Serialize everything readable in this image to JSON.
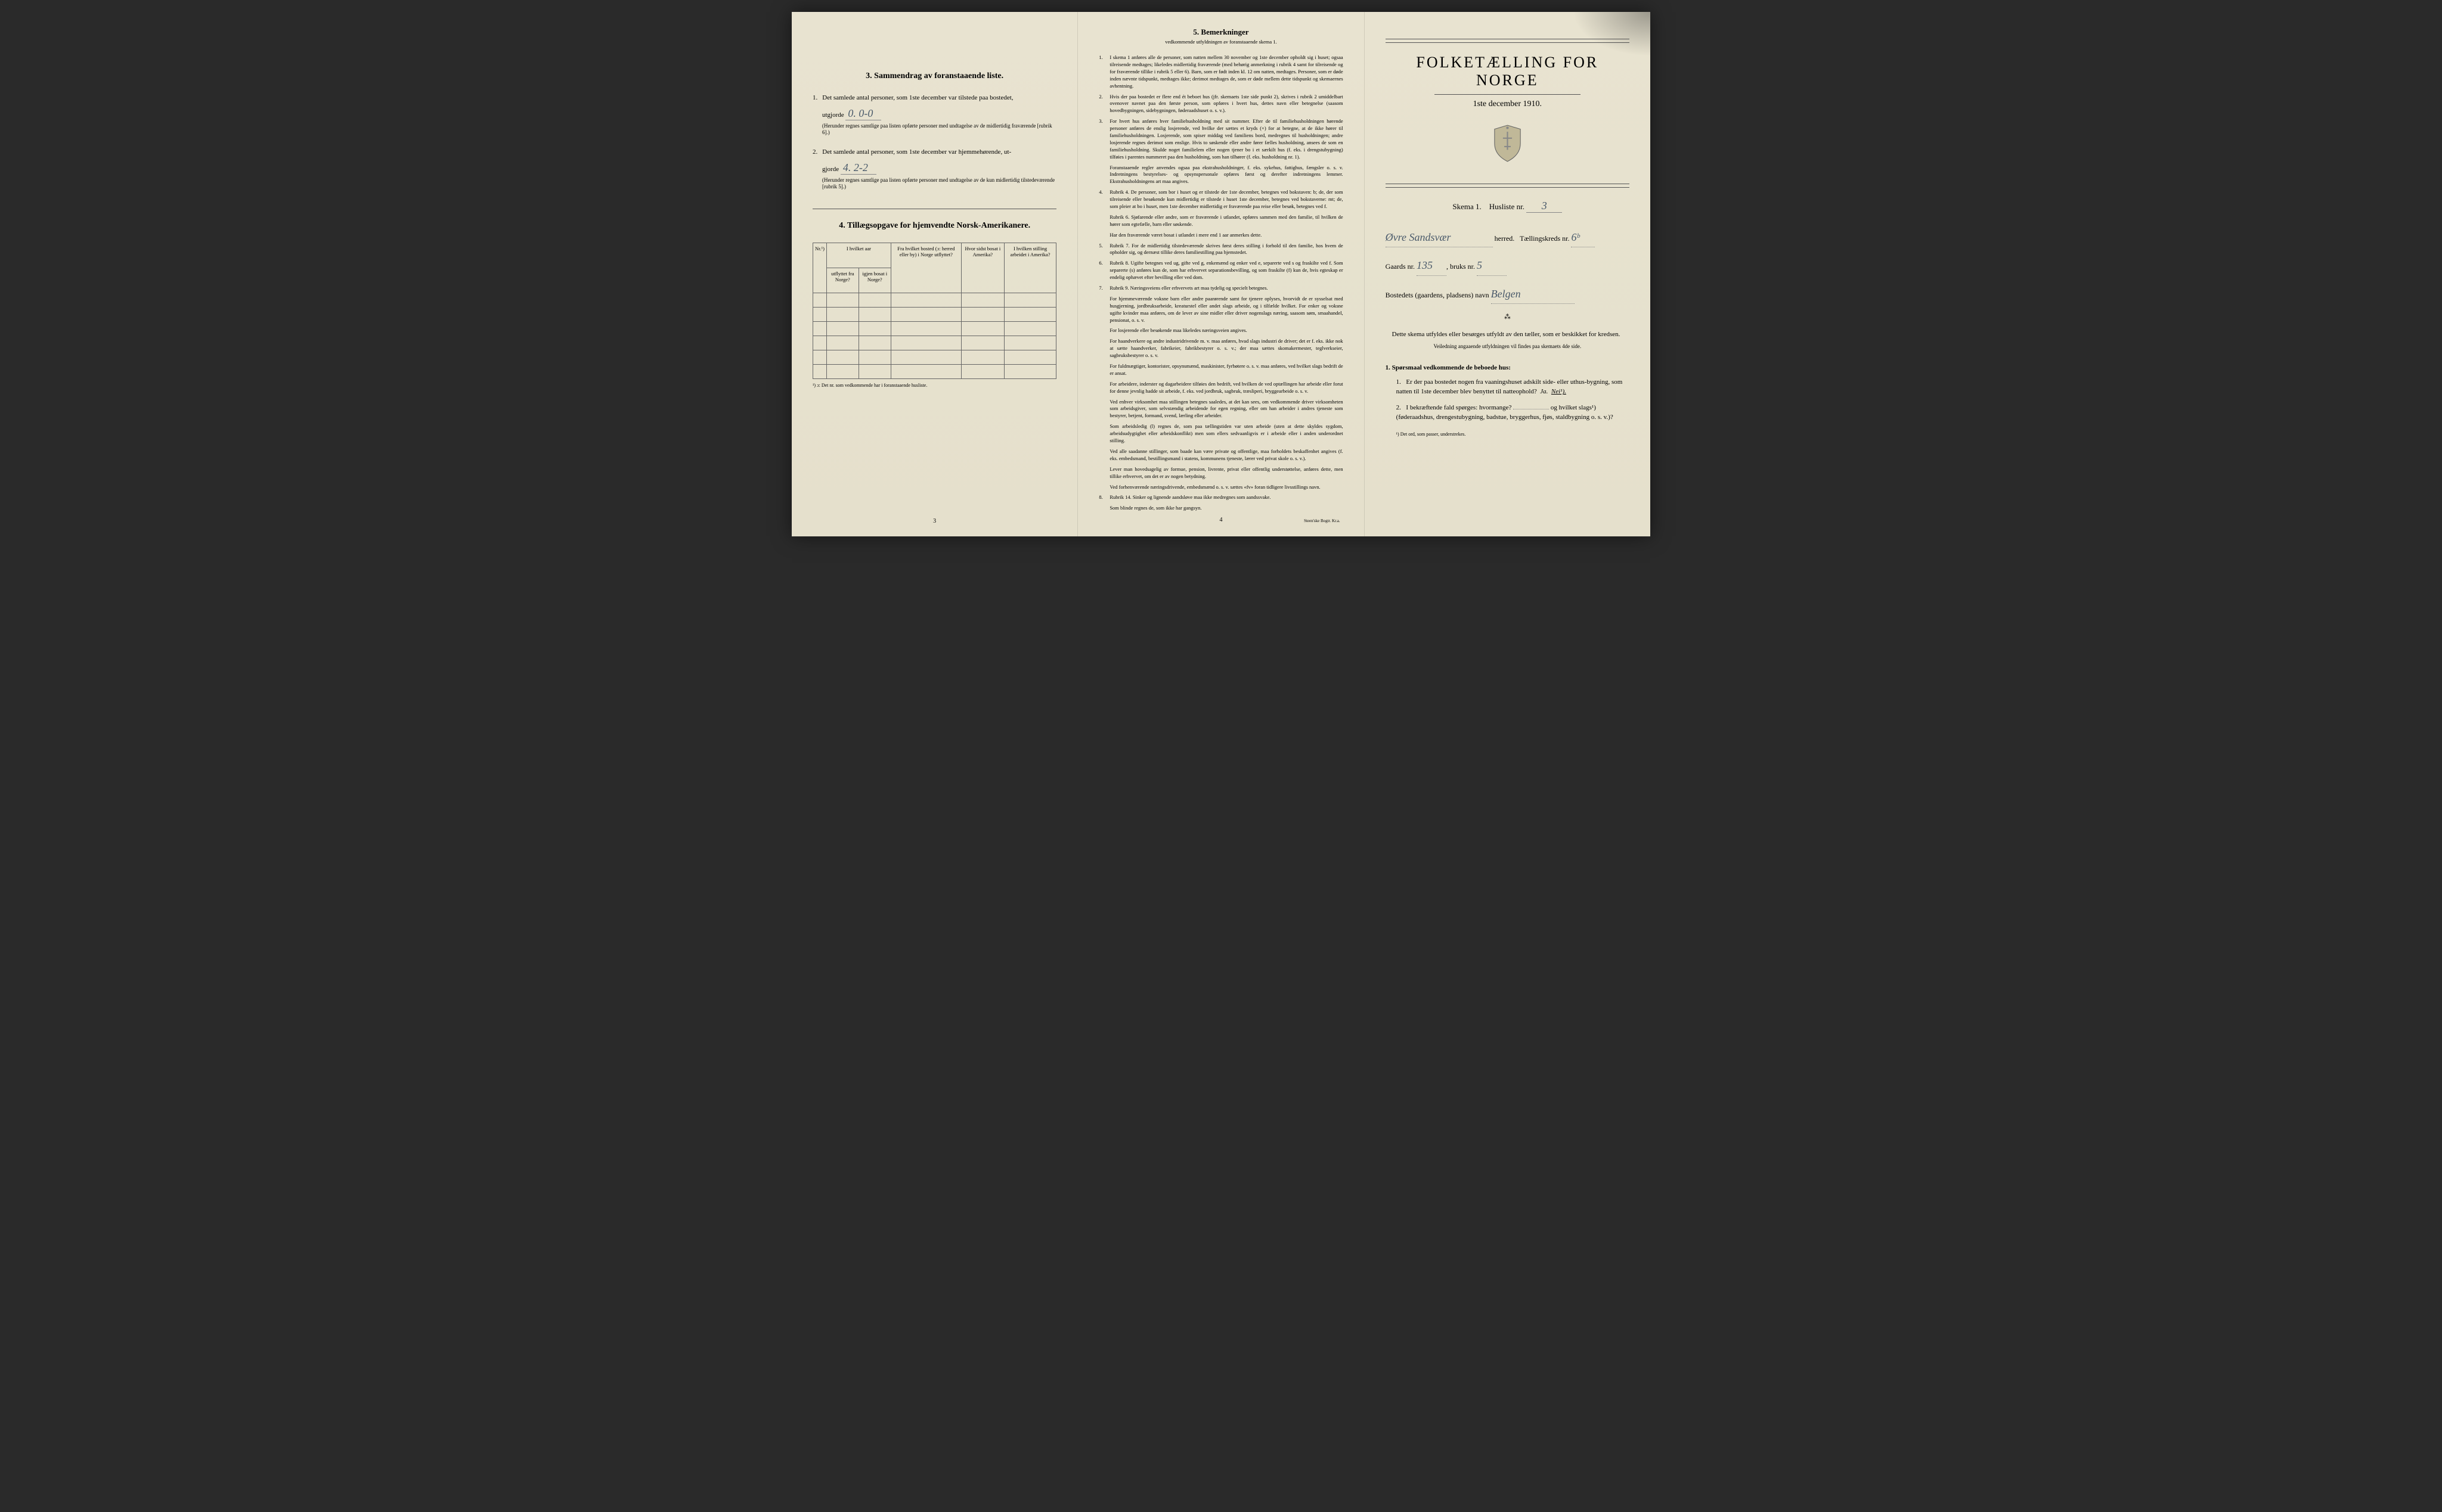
{
  "colors": {
    "paper": "#e8e3d0",
    "ink": "#1a1a1a",
    "handwriting": "#4a5a6a",
    "border": "#666666"
  },
  "left": {
    "section3": {
      "num": "3.",
      "title": "Sammendrag av foranstaaende liste.",
      "q1_num": "1.",
      "q1_text": "Det samlede antal personer, som 1ste december var tilstede paa bostedet,",
      "q1_prefix": "utgjorde",
      "q1_value": "0. 0-0",
      "q1_note": "(Herunder regnes samtlige paa listen opførte personer med undtagelse av de midlertidig fraværende [rubrik 6].)",
      "q2_num": "2.",
      "q2_text": "Det samlede antal personer, som 1ste december var hjemmehørende, ut-",
      "q2_prefix": "gjorde",
      "q2_value": "4. 2-2",
      "q2_note": "(Herunder regnes samtlige paa listen opførte personer med undtagelse av de kun midlertidig tilstedeværende [rubrik 5].)"
    },
    "section4": {
      "num": "4.",
      "title": "Tillægsopgave for hjemvendte Norsk-Amerikanere.",
      "headers": {
        "col1": "Nr.¹)",
        "col2a": "I hvilket aar",
        "col2b": "utflyttet fra Norge?",
        "col2c": "igjen bosat i Norge?",
        "col3": "Fra hvilket bosted (ɔ: herred eller by) i Norge utflyttet?",
        "col4": "Hvor sidst bosat i Amerika?",
        "col5": "I hvilken stilling arbeidet i Amerika?"
      },
      "footnote": "¹) ɔ: Det nr. som vedkommende har i foranstaaende husliste."
    },
    "page_num": "3"
  },
  "center": {
    "section5": {
      "num": "5.",
      "title": "Bemerkninger",
      "subtitle": "vedkommende utfyldningen av foranstaaende skema 1.",
      "items": [
        {
          "num": "1.",
          "text": "I skema 1 anføres alle de personer, som natten mellem 30 november og 1ste december opholdt sig i huset; ogsaa tilreisende medtages; likeledes midlertidig fraværende (med behørig anmerkning i rubrik 4 samt for tilreisende og for fraværende tillike i rubrik 5 eller 6). Barn, som er født inden kl. 12 om natten, medtages. Personer, som er døde inden nævnte tidspunkt, medtages ikke; derimot medtages de, som er døde mellem dette tidspunkt og skemaernes avhentning."
        },
        {
          "num": "2.",
          "text": "Hvis der paa bostedet er flere end ét beboet hus (jfr. skemaets 1ste side punkt 2), skrives i rubrik 2 umiddelbart ovenover navnet paa den første person, som opføres i hvert hus, dettes navn eller betegnelse (saasom hovedbygningen, sidebygningen, føderaadshuset o. s. v.)."
        },
        {
          "num": "3.",
          "text": "For hvert hus anføres hver familiehusholdning med sit nummer. Efter de til familiehusholdningen hørende personer anføres de enslig losjerende, ved hvilke der sættes et kryds (×) for at betegne, at de ikke hører til familiehusholdningen. Losjerende, som spiser middag ved familiens bord, medregnes til husholdningen; andre losjerende regnes derimot som enslige. Hvis to søskende eller andre fører fælles husholdning, ansees de som en familiehusholdning. Skulde noget familielem eller nogen tjener bo i et særkilt hus (f. eks. i drengstubygning) tilføies i parentes nummeret paa den husholdning, som han tilhører (f. eks. husholdning nr. 1)."
        },
        {
          "num": "",
          "text": "Foranstaaende regler anvendes ogsaa paa ekstrahusholdninger, f. eks. sykehus, fattighus, fængsler o. s. v. Indretningens bestyrelses- og opsynspersonale opføres først og derefter indretningens lemmer. Ekstrahusholdningens art maa angives."
        },
        {
          "num": "4.",
          "text": "Rubrik 4. De personer, som bor i huset og er tilstede der 1ste december, betegnes ved bokstaven: b; de, der som tilreisende eller besøkende kun midlertidig er tilstede i huset 1ste december, betegnes ved bokstaverne: mt; de, som pleier at bo i huset, men 1ste december midlertidig er fraværende paa reise eller besøk, betegnes ved f."
        },
        {
          "num": "",
          "text": "Rubrik 6. Sjøfarende eller andre, som er fraværende i utlandet, opføres sammen med den familie, til hvilken de hører som egtefælle, barn eller søskende."
        },
        {
          "num": "",
          "text": "Har den fraværende været bosat i utlandet i mere end 1 aar anmerkes dette."
        },
        {
          "num": "5.",
          "text": "Rubrik 7. For de midlertidig tilstedeværende skrives først deres stilling i forhold til den familie, hos hvem de opholder sig, og dernæst tillike deres familiestilling paa hjemstedet."
        },
        {
          "num": "6.",
          "text": "Rubrik 8. Ugifte betegnes ved ug, gifte ved g, enkemænd og enker ved e, separerte ved s og fraskilte ved f. Som separerte (s) anføres kun de, som har erhvervet separationsbevilling, og som fraskilte (f) kun de, hvis egteskap er endelig ophævet efter bevilling eller ved dom."
        },
        {
          "num": "7.",
          "text": "Rubrik 9. Næringsveiens eller erhvervets art maa tydelig og specielt betegnes."
        },
        {
          "num": "",
          "text": "For hjemmeværende voksne barn eller andre paarørende samt for tjenere oplyses, hvorvidt de er sysselsat med husgjerning, jordbruksarbeide, kreaturstel eller andet slags arbeide, og i tilfælde hvilket. For enker og voksne ugifte kvinder maa anføres, om de lever av sine midler eller driver nogenslags næring, saasom søm, smaahandel, pensionat, o. s. v."
        },
        {
          "num": "",
          "text": "For losjerende eller besøkende maa likeledes næringsveien angives."
        },
        {
          "num": "",
          "text": "For haandverkere og andre industridrivende m. v. maa anføres, hvad slags industri de driver; det er f. eks. ikke nok at sætte haandverker, fabrikeier, fabrikbestyrer o. s. v.; der maa sættes skomakermester, teglverkseier, sagbruksbestyrer o. s. v."
        },
        {
          "num": "",
          "text": "For fuldmægtiger, kontorister, opsynsmænd, maskinister, fyrbøtere o. s. v. maa anføres, ved hvilket slags bedrift de er ansat."
        },
        {
          "num": "",
          "text": "For arbeidere, inderster og dagarbeidere tilføies den bedrift, ved hvilken de ved optællingen har arbeide eller forut for denne jevnlig hadde sit arbeide, f. eks. ved jordbruk, sagbruk, træsliperi, bryggearbeide o. s. v."
        },
        {
          "num": "",
          "text": "Ved enhver virksomhet maa stillingen betegnes saaledes, at det kan sees, om vedkommende driver virksomheten som arbeidsgiver, som selvstændig arbeidende for egen regning, eller om han arbeider i andres tjeneste som bestyrer, betjent, formand, svend, lærling eller arbeider."
        },
        {
          "num": "",
          "text": "Som arbeidsledig (l) regnes de, som paa tællingstiden var uten arbeide (uten at dette skyldes sygdom, arbeidsudygtighet eller arbeidskonflikt) men som ellers sedvaanligvis er i arbeide eller i anden underordnet stilling."
        },
        {
          "num": "",
          "text": "Ved alle saadanne stillinger, som baade kan være private og offentlige, maa forholdets beskaffenhet angives (f. eks. embedsmand, bestillingsmand i statens, kommunens tjeneste, lærer ved privat skole o. s. v.)."
        },
        {
          "num": "",
          "text": "Lever man hovedsagelig av formue, pension, livrente, privat eller offentlig understøttelse, anføres dette, men tillike erhvervet, om det er av nogen betydning."
        },
        {
          "num": "",
          "text": "Ved forhenværende næringsdrivende, embedsmænd o. s. v. sættes «fv» foran tidligere livsstillings navn."
        },
        {
          "num": "8.",
          "text": "Rubrik 14. Sinker og lignende aandsløve maa ikke medregnes som aandssvake."
        },
        {
          "num": "",
          "text": "Som blinde regnes de, som ikke har gangsyn."
        }
      ]
    },
    "page_num": "4",
    "printer": "Steen'ske Bogtr. Kr.a."
  },
  "right": {
    "title": "FOLKETÆLLING FOR NORGE",
    "date": "1ste december 1910.",
    "skema_label": "Skema 1.",
    "husliste_label": "Husliste nr.",
    "husliste_nr": "3",
    "herred_value": "Øvre Sandsvær",
    "herred_label": "herred.",
    "taellingskreds_label": "Tællingskreds nr.",
    "taellingskreds_nr": "6ᵇ",
    "gaards_label": "Gaards nr.",
    "gaards_nr": "135",
    "bruks_label": "bruks nr.",
    "bruks_nr": "5",
    "bosted_label": "Bostedets (gaardens, pladsens) navn",
    "bosted_value": "Belgen",
    "instruction1": "Dette skema utfyldes eller besørges utfyldt av den tæller, som er beskikket for kredsen.",
    "instruction2": "Veiledning angaaende utfyldningen vil findes paa skemaets 4de side.",
    "q1_heading_num": "1.",
    "q1_heading": "Spørsmaal vedkommende de beboede hus:",
    "q1_1_num": "1.",
    "q1_1_text": "Er der paa bostedet nogen fra vaaningshuset adskilt side- eller uthus-bygning, som natten til 1ste december blev benyttet til natteophold?",
    "q1_1_ja": "Ja.",
    "q1_1_nei": "Nei¹).",
    "q1_2_num": "2.",
    "q1_2_text": "I bekræftende fald spørges: hvormange?",
    "q1_2_text2": "og hvilket slags¹) (føderaadshus, drengestubygning, badstue, bryggerhus, fjøs, staldbygning o. s. v.)?",
    "footnote": "¹) Det ord, som passer, understrekes."
  }
}
